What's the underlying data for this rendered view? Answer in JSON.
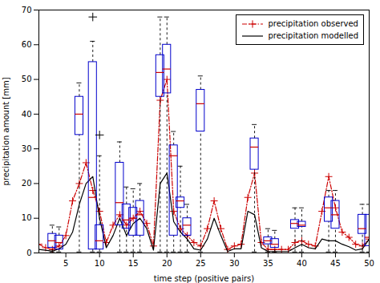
{
  "chart_data": {
    "type": "line",
    "xlabel": "time step (positive pairs)",
    "ylabel": "precipitation amount [mm]",
    "xlim": [
      1,
      50
    ],
    "ylim": [
      0,
      70
    ],
    "xticks": [
      5,
      10,
      15,
      20,
      25,
      30,
      35,
      40,
      45,
      50
    ],
    "yticks": [
      0,
      10,
      20,
      30,
      40,
      50,
      60,
      70
    ],
    "grid": false,
    "legend": "upper right",
    "x": [
      1,
      2,
      3,
      4,
      5,
      6,
      7,
      8,
      9,
      10,
      11,
      12,
      13,
      14,
      15,
      16,
      17,
      18,
      19,
      20,
      21,
      22,
      23,
      24,
      25,
      26,
      27,
      28,
      29,
      30,
      31,
      32,
      33,
      34,
      35,
      36,
      37,
      38,
      39,
      40,
      41,
      42,
      43,
      44,
      45,
      46,
      47,
      48,
      49,
      50
    ],
    "series": [
      {
        "name": "precipitation observed",
        "color": "#cc0000",
        "line_style": "dashdot",
        "marker": "+",
        "values": [
          2.5,
          1.5,
          1.0,
          2.0,
          5.0,
          15.0,
          20.0,
          26.0,
          18.0,
          12.0,
          3.0,
          8.0,
          11.0,
          8.0,
          10.0,
          12.0,
          8.5,
          2.0,
          44.0,
          50.0,
          12.0,
          7.0,
          5.0,
          3.0,
          2.0,
          7.0,
          15.0,
          7.0,
          1.0,
          2.0,
          2.5,
          16.0,
          23.0,
          3.0,
          1.0,
          1.0,
          1.0,
          1.0,
          3.0,
          3.5,
          2.5,
          2.0,
          12.0,
          22.0,
          13.0,
          6.0,
          4.5,
          2.5,
          2.0,
          4.0
        ]
      },
      {
        "name": "precipitation modelled",
        "color": "#000000",
        "line_style": "solid",
        "values": [
          1.0,
          0.8,
          0.5,
          1.2,
          2.5,
          6.0,
          14.0,
          20.0,
          22.0,
          10.0,
          1.5,
          5.0,
          10.0,
          5.0,
          8.5,
          10.0,
          7.0,
          0.8,
          20.0,
          23.0,
          9.0,
          6.0,
          4.0,
          1.2,
          0.8,
          4.0,
          10.0,
          5.0,
          0.4,
          1.2,
          1.2,
          12.0,
          11.0,
          1.5,
          0.4,
          0.4,
          0.4,
          0.4,
          1.5,
          2.5,
          1.5,
          1.2,
          4.0,
          3.5,
          3.5,
          2.5,
          1.8,
          0.8,
          1.2,
          4.0
        ]
      }
    ],
    "boxes": {
      "color": "#0000cc",
      "median_color": "#cc0000",
      "whisker_color": "#000000",
      "items": [
        {
          "x": 3,
          "whislo": 0.3,
          "q1": 1.5,
          "med": 3.5,
          "q3": 5.5,
          "whishi": 8.0,
          "fliers_hi": [],
          "fliers_lo": []
        },
        {
          "x": 4,
          "whislo": 0.3,
          "q1": 1.0,
          "med": 3.0,
          "q3": 5.0,
          "whishi": 7.5,
          "fliers_hi": [],
          "fliers_lo": []
        },
        {
          "x": 7,
          "whislo": 0.3,
          "q1": 34.0,
          "med": 40.0,
          "q3": 45.0,
          "whishi": 49.0,
          "fliers_hi": [],
          "fliers_lo": []
        },
        {
          "x": 9,
          "whislo": 0.3,
          "q1": 1.0,
          "med": 16.0,
          "q3": 55.0,
          "whishi": 61.0,
          "fliers_hi": [
            68.0
          ],
          "fliers_lo": []
        },
        {
          "x": 10,
          "whislo": 0.3,
          "q1": 1.0,
          "med": 3.5,
          "q3": 8.0,
          "whishi": 28.0,
          "fliers_hi": [
            34.0
          ],
          "fliers_lo": []
        },
        {
          "x": 13,
          "whislo": 0.3,
          "q1": 8.0,
          "med": 14.5,
          "q3": 26.0,
          "whishi": 32.0,
          "fliers_hi": [],
          "fliers_lo": []
        },
        {
          "x": 14,
          "whislo": 0.3,
          "q1": 7.0,
          "med": 9.5,
          "q3": 14.0,
          "whishi": 19.0,
          "fliers_hi": [],
          "fliers_lo": []
        },
        {
          "x": 15,
          "whislo": 0.3,
          "q1": 5.0,
          "med": 10.0,
          "q3": 13.0,
          "whishi": 18.5,
          "fliers_hi": [],
          "fliers_lo": []
        },
        {
          "x": 16,
          "whislo": 0.3,
          "q1": 5.0,
          "med": 11.0,
          "q3": 15.0,
          "whishi": 20.0,
          "fliers_hi": [],
          "fliers_lo": []
        },
        {
          "x": 19,
          "whislo": 0.3,
          "q1": 45.0,
          "med": 52.0,
          "q3": 57.0,
          "whishi": 68.0,
          "fliers_hi": [],
          "fliers_lo": []
        },
        {
          "x": 20,
          "whislo": 0.3,
          "q1": 46.0,
          "med": 53.0,
          "q3": 60.0,
          "whishi": 68.0,
          "fliers_hi": [],
          "fliers_lo": []
        },
        {
          "x": 21,
          "whislo": 0.3,
          "q1": 5.0,
          "med": 28.0,
          "q3": 31.0,
          "whishi": 35.0,
          "fliers_hi": [],
          "fliers_lo": []
        },
        {
          "x": 22,
          "whislo": 0.3,
          "q1": 13.0,
          "med": 15.0,
          "q3": 16.0,
          "whishi": 25.0,
          "fliers_hi": [],
          "fliers_lo": []
        },
        {
          "x": 23,
          "whislo": 0.3,
          "q1": 5.0,
          "med": 8.0,
          "q3": 10.0,
          "whishi": 14.0,
          "fliers_hi": [],
          "fliers_lo": []
        },
        {
          "x": 25,
          "whislo": 0.3,
          "q1": 35.0,
          "med": 43.0,
          "q3": 47.0,
          "whishi": 51.0,
          "fliers_hi": [],
          "fliers_lo": []
        },
        {
          "x": 33,
          "whislo": 0.3,
          "q1": 24.0,
          "med": 30.5,
          "q3": 33.0,
          "whishi": 37.0,
          "fliers_hi": [],
          "fliers_lo": []
        },
        {
          "x": 35,
          "whislo": 0.3,
          "q1": 2.5,
          "med": 3.5,
          "q3": 4.5,
          "whishi": 7.0,
          "fliers_hi": [],
          "fliers_lo": []
        },
        {
          "x": 36,
          "whislo": 0.3,
          "q1": 1.5,
          "med": 2.5,
          "q3": 4.0,
          "whishi": 6.5,
          "fliers_hi": [],
          "fliers_lo": []
        },
        {
          "x": 39,
          "whislo": 0.3,
          "q1": 7.0,
          "med": 8.5,
          "q3": 9.5,
          "whishi": 13.0,
          "fliers_hi": [],
          "fliers_lo": []
        },
        {
          "x": 40,
          "whislo": 0.3,
          "q1": 7.5,
          "med": 8.0,
          "q3": 9.0,
          "whishi": 13.0,
          "fliers_hi": [],
          "fliers_lo": []
        },
        {
          "x": 44,
          "whislo": 0.3,
          "q1": 9.0,
          "med": 13.0,
          "q3": 16.0,
          "whishi": 18.0,
          "fliers_hi": [],
          "fliers_lo": []
        },
        {
          "x": 45,
          "whislo": 0.3,
          "q1": 7.0,
          "med": 11.0,
          "q3": 15.0,
          "whishi": 18.0,
          "fliers_hi": [],
          "fliers_lo": []
        },
        {
          "x": 49,
          "whislo": 0.3,
          "q1": 5.5,
          "med": 7.0,
          "q3": 11.0,
          "whishi": 14.0,
          "fliers_hi": [],
          "fliers_lo": []
        },
        {
          "x": 50,
          "whislo": 0.3,
          "q1": 2.0,
          "med": 4.5,
          "q3": 11.0,
          "whishi": 14.0,
          "fliers_hi": [],
          "fliers_lo": []
        }
      ]
    }
  }
}
